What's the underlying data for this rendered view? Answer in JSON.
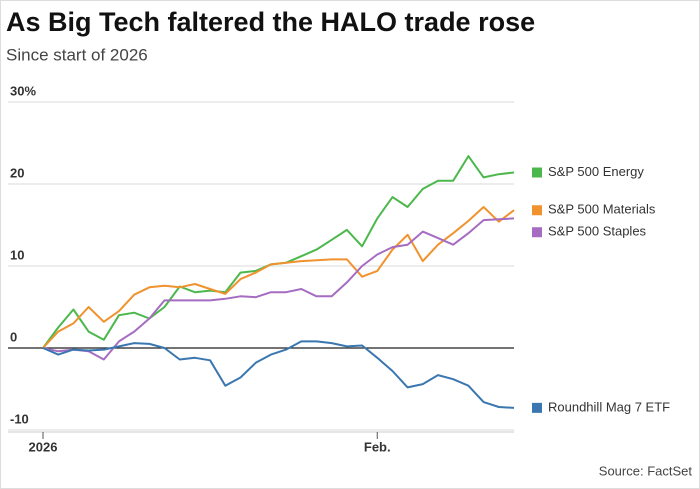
{
  "chart_data": {
    "type": "line",
    "title": "As Big Tech faltered the HALO trade rose",
    "subtitle": "Since start of 2026",
    "source": "Source: FactSet",
    "categories": [
      "2026",
      null,
      null,
      null,
      null,
      null,
      null,
      null,
      null,
      null,
      null,
      null,
      null,
      null,
      null,
      null,
      null,
      null,
      null,
      null,
      null,
      null,
      "Feb.",
      null,
      null,
      null,
      null,
      null,
      null,
      null,
      null,
      null
    ],
    "ylim": [
      -10,
      30
    ],
    "yticks": [
      -10,
      0,
      10,
      20,
      {
        "value": 30,
        "label": "30%"
      }
    ],
    "grid": true,
    "series": [
      {
        "name": "S&P 500 Energy",
        "color": "#4cb84c",
        "values": [
          0,
          2.5,
          4.7,
          2,
          1,
          4,
          4.3,
          3.6,
          5,
          7.5,
          6.8,
          7,
          6.8,
          9.2,
          9.4,
          10.2,
          10.4,
          11.2,
          12,
          13.2,
          14.4,
          12.4,
          15.8,
          18.4,
          17.2,
          19.4,
          20.4,
          20.4,
          23.4,
          20.8,
          21.2,
          21.4
        ]
      },
      {
        "name": "S&P 500 Materials",
        "color": "#f0922e",
        "values": [
          0,
          2,
          3,
          5,
          3.2,
          4.5,
          6.5,
          7.4,
          7.6,
          7.4,
          7.8,
          7.2,
          6.6,
          8.4,
          9.2,
          10.2,
          10.4,
          10.6,
          10.7,
          10.8,
          10.8,
          8.7,
          9.4,
          12,
          13.8,
          10.6,
          12.6,
          14,
          15.5,
          17.2,
          15.4,
          16.8
        ]
      },
      {
        "name": "S&P 500 Staples",
        "color": "#a56cc1",
        "values": [
          0,
          -0.4,
          -0.2,
          -0.4,
          -1.4,
          0.8,
          2,
          3.6,
          5.8,
          5.8,
          5.8,
          5.8,
          6,
          6.3,
          6.2,
          6.8,
          6.8,
          7.2,
          6.3,
          6.3,
          8,
          10,
          11.4,
          12.3,
          12.6,
          14.2,
          13.4,
          12.6,
          14,
          15.6,
          15.7,
          15.8
        ]
      },
      {
        "name": "Roundhill Mag 7 ETF",
        "color": "#3a77b0",
        "values": [
          0,
          -0.8,
          -0.2,
          -0.3,
          -0.2,
          0.2,
          0.6,
          0.5,
          0,
          -1.4,
          -1.2,
          -1.5,
          -4.6,
          -3.6,
          -1.8,
          -0.8,
          -0.2,
          0.8,
          0.8,
          0.6,
          0.2,
          0.3,
          -1.2,
          -2.8,
          -4.8,
          -4.4,
          -3.3,
          -3.8,
          -4.6,
          -6.6,
          -7.2,
          -7.3
        ]
      }
    ]
  }
}
